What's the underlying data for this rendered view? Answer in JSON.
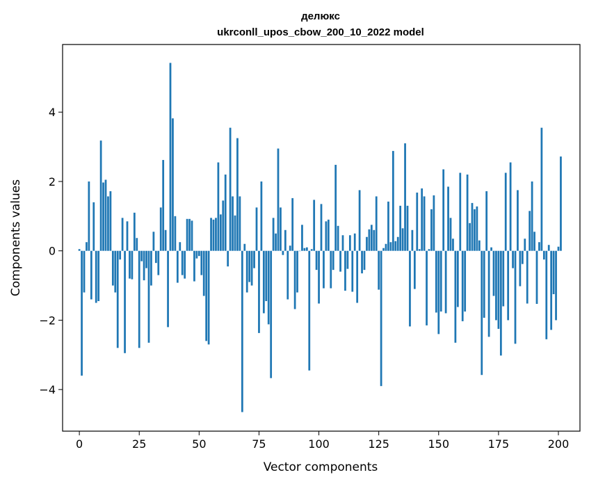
{
  "chart_data": {
    "type": "bar",
    "title": "делюкс",
    "subtitle": "ukrconll_upos_cbow_200_10_2022 model",
    "xlabel": "Vector components",
    "ylabel": "Components values",
    "xlim": [
      -7,
      209
    ],
    "ylim": [
      -5.2,
      5.95
    ],
    "xticks": [
      0,
      25,
      50,
      75,
      100,
      125,
      150,
      175,
      200
    ],
    "yticks": [
      -4,
      -2,
      0,
      2,
      4
    ],
    "ytick_labels": [
      "−4",
      "−2",
      "0",
      "2",
      "4"
    ],
    "grid": false,
    "color": "#1f77b4",
    "values": [
      0.05,
      -3.6,
      -1.2,
      0.25,
      2.0,
      -1.4,
      1.4,
      -1.5,
      -1.45,
      3.18,
      1.97,
      2.05,
      1.57,
      1.72,
      -1.0,
      -1.2,
      -2.8,
      -0.25,
      0.95,
      -2.95,
      0.85,
      -0.8,
      -0.82,
      1.1,
      0.37,
      -2.8,
      -0.3,
      -0.85,
      -0.5,
      -2.65,
      -1.0,
      0.55,
      -0.35,
      -0.7,
      1.25,
      2.62,
      0.6,
      -2.2,
      5.42,
      3.82,
      1.0,
      -0.92,
      0.25,
      -0.7,
      -0.8,
      0.92,
      0.92,
      0.87,
      -0.88,
      -0.22,
      -0.15,
      -0.7,
      -1.3,
      -2.6,
      -2.7,
      0.95,
      0.9,
      0.95,
      2.55,
      1.05,
      1.45,
      2.2,
      -0.45,
      3.55,
      1.57,
      1.02,
      3.25,
      1.57,
      -4.65,
      0.2,
      -1.2,
      -0.9,
      -1.0,
      -0.5,
      1.25,
      -2.37,
      2.0,
      -1.8,
      -1.45,
      -2.12,
      -3.67,
      0.95,
      0.5,
      2.95,
      1.25,
      -0.12,
      0.6,
      -1.4,
      0.15,
      1.52,
      -1.68,
      -1.2,
      0.0,
      0.75,
      0.08,
      0.1,
      -3.45,
      0.05,
      1.47,
      -0.55,
      -1.52,
      1.35,
      -1.08,
      0.85,
      0.9,
      -1.08,
      -0.55,
      2.48,
      0.72,
      -0.6,
      0.45,
      -1.15,
      -0.52,
      0.45,
      -1.18,
      0.5,
      -1.5,
      1.75,
      -0.65,
      -0.55,
      0.4,
      0.62,
      0.75,
      0.6,
      1.57,
      -1.12,
      -3.9,
      0.08,
      0.2,
      1.42,
      0.25,
      2.88,
      0.28,
      0.4,
      1.3,
      0.65,
      3.1,
      1.3,
      -2.18,
      0.6,
      -1.1,
      1.68,
      0.05,
      1.8,
      1.57,
      -2.15,
      0.05,
      1.2,
      1.6,
      -1.78,
      -2.4,
      -1.75,
      2.35,
      -1.8,
      1.85,
      0.95,
      0.35,
      -2.65,
      -1.62,
      2.25,
      -2.03,
      -1.75,
      2.2,
      0.8,
      1.38,
      1.2,
      1.28,
      0.3,
      -3.58,
      -1.93,
      1.72,
      -2.48,
      0.1,
      -1.3,
      -2.0,
      -2.25,
      -3.02,
      -1.6,
      2.25,
      -2.0,
      2.55,
      -0.5,
      -2.68,
      1.75,
      -1.02,
      -0.38,
      0.35,
      -1.52,
      1.15,
      2.0,
      0.55,
      -1.53,
      0.25,
      3.55,
      -0.25,
      -2.55,
      0.17,
      -2.28,
      -1.25,
      -2.0,
      0.12,
      2.72
    ]
  }
}
